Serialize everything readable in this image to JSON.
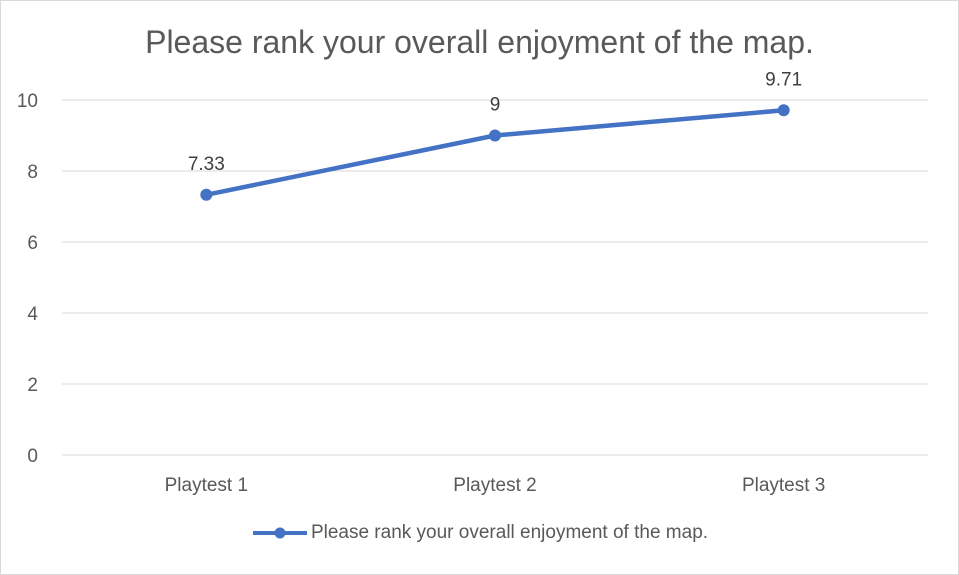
{
  "chart_data": {
    "type": "line",
    "title": "Please rank your overall enjoyment of the map.",
    "categories": [
      "Playtest 1",
      "Playtest 2",
      "Playtest 3"
    ],
    "series": [
      {
        "name": "Please rank your overall enjoyment of the map.",
        "values": [
          7.33,
          9,
          9.71
        ],
        "labels": [
          "7.33",
          "9",
          "9.71"
        ]
      }
    ],
    "ylim": [
      0,
      10
    ],
    "yticks": [
      "0",
      "2",
      "4",
      "6",
      "8",
      "10"
    ],
    "xlabel": "",
    "ylabel": "",
    "grid": true,
    "legend": "bottom",
    "colors": {
      "line": "#4472c4",
      "grid": "#d9d9d9",
      "text": "#595959"
    }
  }
}
